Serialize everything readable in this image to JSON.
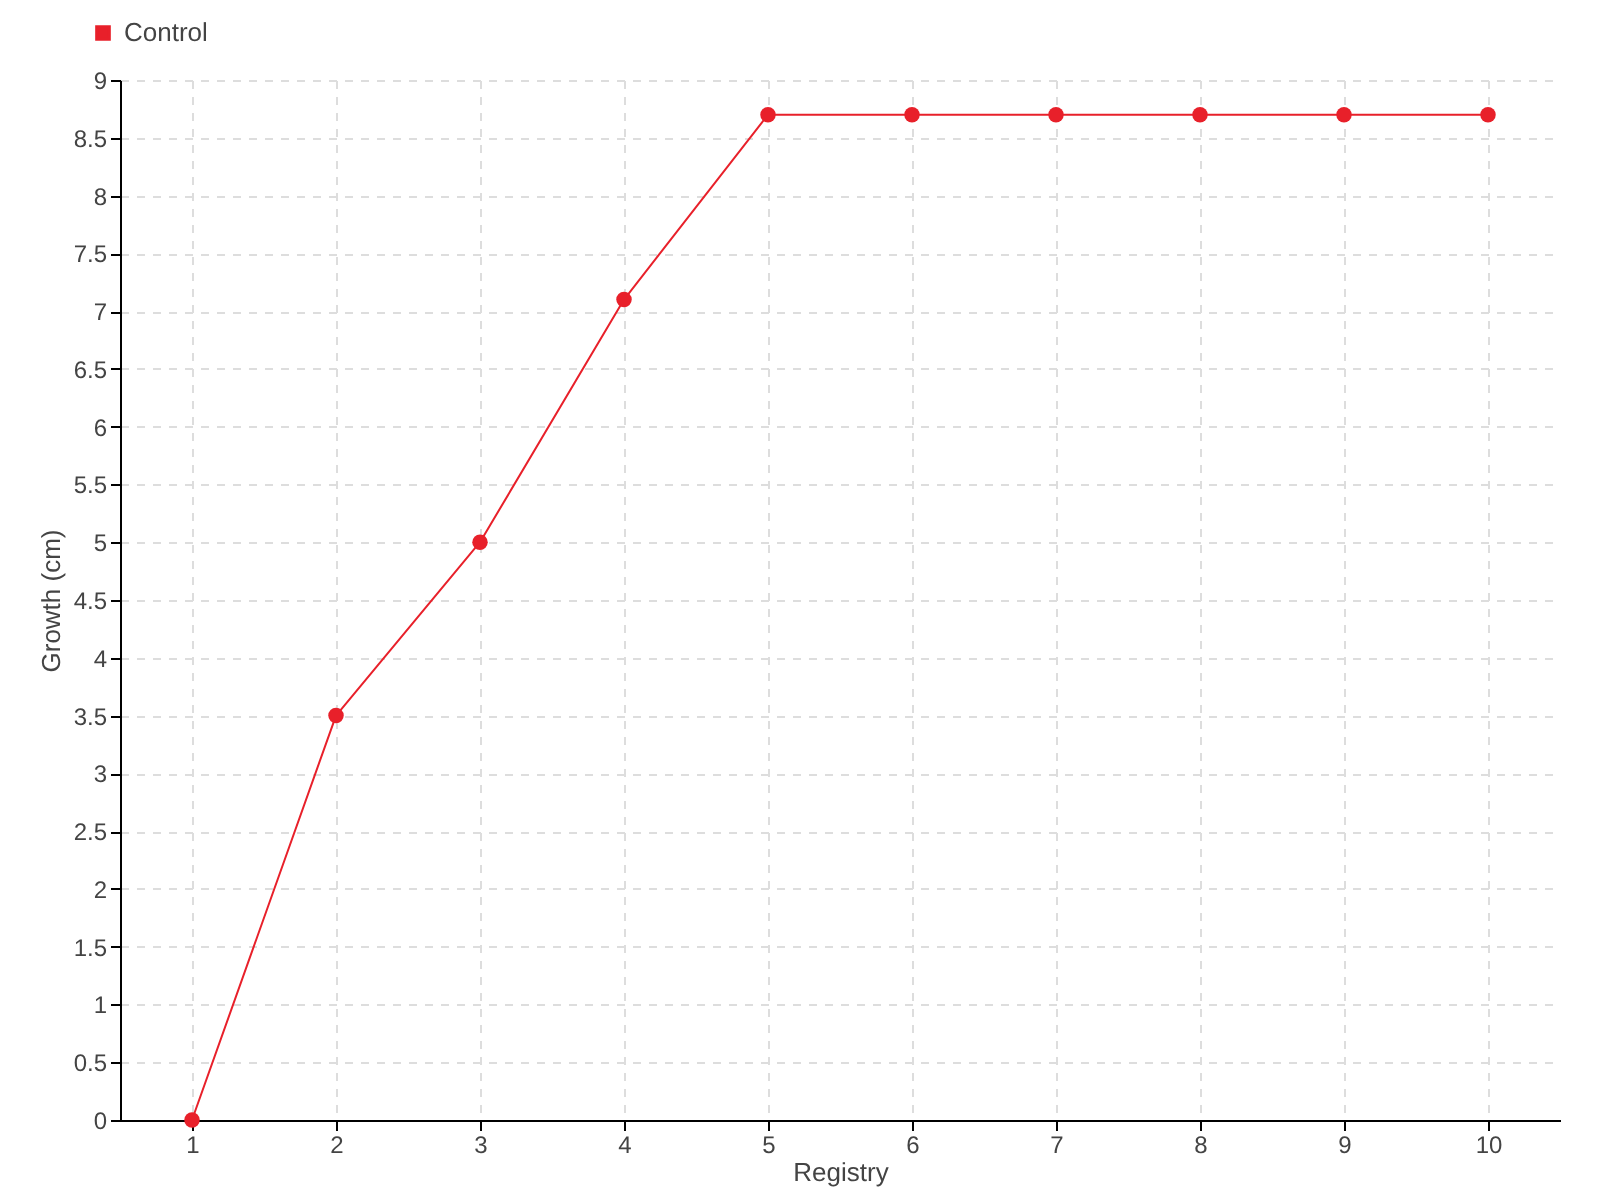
{
  "chart_data": {
    "type": "line",
    "xlabel": "Registry",
    "ylabel": "Growth (cm)",
    "categories": [
      "1",
      "2",
      "3",
      "4",
      "5",
      "6",
      "7",
      "8",
      "9",
      "10"
    ],
    "series": [
      {
        "name": "Control",
        "color": "#e8202a",
        "values": [
          0,
          3.5,
          5,
          7.1,
          8.7,
          8.7,
          8.7,
          8.7,
          8.7,
          8.7
        ]
      }
    ],
    "ylim": [
      0,
      9
    ],
    "yticks": [
      0,
      0.5,
      1,
      1.5,
      2,
      2.5,
      3,
      3.5,
      4,
      4.5,
      5,
      5.5,
      6,
      6.5,
      7,
      7.5,
      8,
      8.5,
      9
    ],
    "grid": true,
    "legend": "top left",
    "marker": "circle",
    "line_style": "solid"
  }
}
